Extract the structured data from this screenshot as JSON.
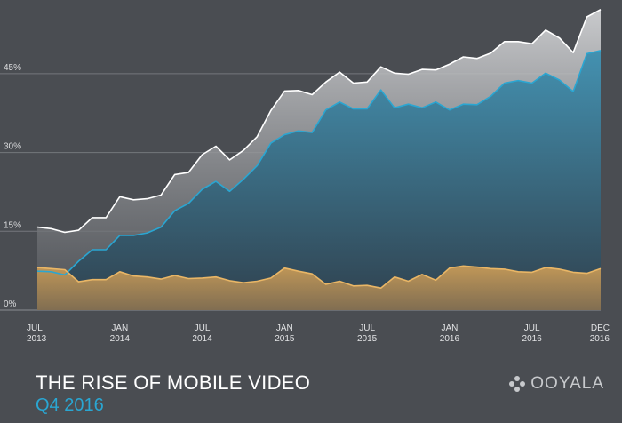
{
  "chart_data": {
    "type": "area",
    "title": "THE RISE OF MOBILE VIDEO",
    "subtitle": "Q4 2016",
    "ylim": [
      0,
      58
    ],
    "y_ticks": [
      {
        "value": 0,
        "label": "0%"
      },
      {
        "value": 15,
        "label": "15%"
      },
      {
        "value": 30,
        "label": "30%"
      },
      {
        "value": 45,
        "label": "45%"
      }
    ],
    "x_ticks": [
      {
        "index": 0,
        "line1": "JUL",
        "line2": "2013"
      },
      {
        "index": 6,
        "line1": "JAN",
        "line2": "2014"
      },
      {
        "index": 12,
        "line1": "JUL",
        "line2": "2014"
      },
      {
        "index": 18,
        "line1": "JAN",
        "line2": "2015"
      },
      {
        "index": 24,
        "line1": "JUL",
        "line2": "2015"
      },
      {
        "index": 30,
        "line1": "JAN",
        "line2": "2016"
      },
      {
        "index": 36,
        "line1": "JUL",
        "line2": "2016"
      },
      {
        "index": 41,
        "line1": "DEC",
        "line2": "2016"
      }
    ],
    "months": 42,
    "grid": true,
    "series": [
      {
        "color": "#ffffff",
        "values": [
          15.8,
          15.5,
          14.8,
          15.2,
          17.6,
          17.6,
          21.6,
          21.0,
          21.2,
          21.9,
          25.8,
          26.2,
          29.6,
          31.2,
          28.6,
          30.4,
          33.0,
          38.0,
          41.7,
          41.8,
          41.0,
          43.4,
          45.3,
          43.2,
          43.4,
          46.3,
          45.1,
          44.9,
          45.8,
          45.7,
          46.8,
          48.2,
          47.9,
          48.9,
          51.1,
          51.1,
          50.7,
          53.3,
          51.8,
          49.0,
          55.8,
          57.2
        ]
      },
      {
        "color": "#2aa6d2",
        "values": [
          7.4,
          7.3,
          6.7,
          9.3,
          11.5,
          11.5,
          14.2,
          14.2,
          14.7,
          15.8,
          18.9,
          20.3,
          23.0,
          24.5,
          22.6,
          24.9,
          27.5,
          31.8,
          33.4,
          34.1,
          33.8,
          38.1,
          39.6,
          38.3,
          38.3,
          41.9,
          38.5,
          39.2,
          38.5,
          39.6,
          38.1,
          39.2,
          39.1,
          40.7,
          43.2,
          43.7,
          43.2,
          45.1,
          43.8,
          41.6,
          48.8,
          49.4
        ]
      },
      {
        "color": "#e9b666",
        "values": [
          8.1,
          7.9,
          7.7,
          5.4,
          5.8,
          5.8,
          7.3,
          6.5,
          6.3,
          5.9,
          6.6,
          6.0,
          6.1,
          6.3,
          5.6,
          5.2,
          5.5,
          6.1,
          8.0,
          7.4,
          6.9,
          4.9,
          5.5,
          4.6,
          4.7,
          4.2,
          6.3,
          5.5,
          6.8,
          5.7,
          8.0,
          8.4,
          8.2,
          7.9,
          7.8,
          7.3,
          7.2,
          8.1,
          7.8,
          7.2,
          7.0,
          7.9
        ]
      }
    ]
  },
  "brand": {
    "name": "OOYALA"
  }
}
